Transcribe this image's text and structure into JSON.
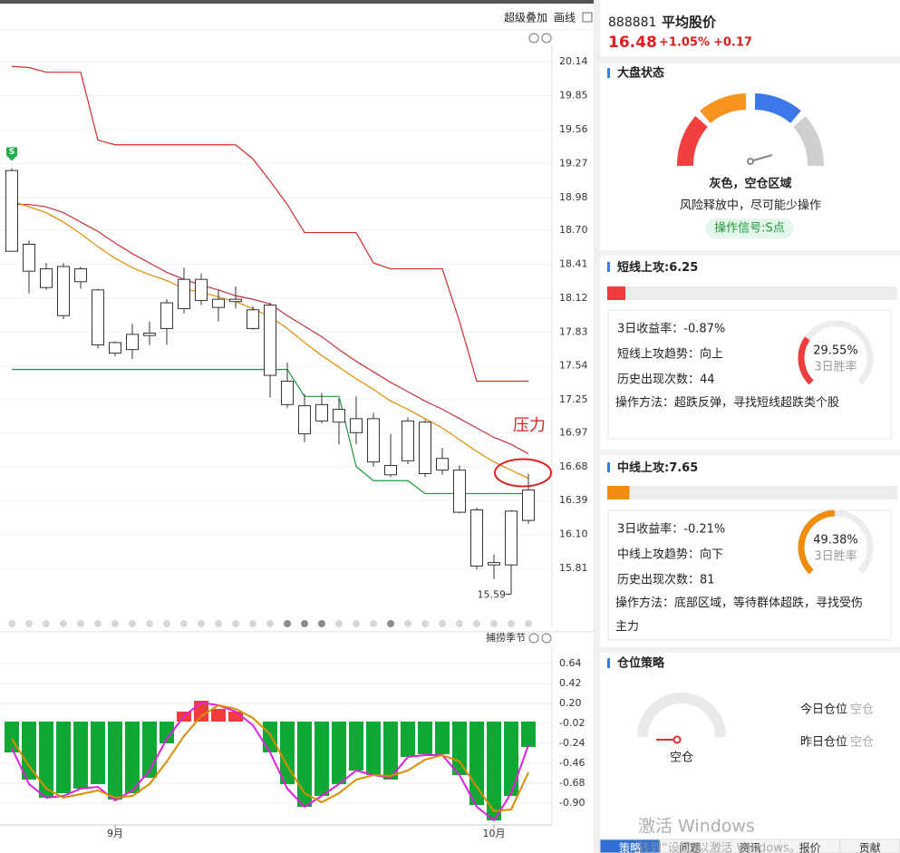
{
  "toolbar": {
    "overlay": "超级叠加",
    "draw": "画线"
  },
  "chart_data": [
    {
      "type": "candlestick",
      "open": [
        18.52,
        18.58,
        18.37,
        18.39,
        18.26,
        18.19,
        17.74,
        17.68,
        17.8,
        17.86,
        18.03,
        18.28,
        18.11,
        18.09,
        18.02,
        18.06,
        17.41,
        17.2,
        17.07,
        17.17,
        16.97,
        17.09,
        16.61,
        16.73,
        17.06,
        16.75,
        16.65,
        16.31,
        15.86,
        15.84,
        16.22
      ],
      "high": [
        19.23,
        18.61,
        18.42,
        18.42,
        18.39,
        18.2,
        17.75,
        17.9,
        17.92,
        18.11,
        18.38,
        18.33,
        18.19,
        18.22,
        18.05,
        18.08,
        17.57,
        17.3,
        17.31,
        17.26,
        17.28,
        17.14,
        16.96,
        17.1,
        17.08,
        16.84,
        16.69,
        16.33,
        15.93,
        16.31,
        16.62
      ],
      "low": [
        18.52,
        18.16,
        18.19,
        17.94,
        18.2,
        17.69,
        17.62,
        17.6,
        17.72,
        17.72,
        17.99,
        18.06,
        17.92,
        18.03,
        17.85,
        17.27,
        17.18,
        16.89,
        17.05,
        16.87,
        16.87,
        16.68,
        16.59,
        16.7,
        16.59,
        16.61,
        16.28,
        15.8,
        15.72,
        15.59,
        16.19
      ],
      "close": [
        19.21,
        18.35,
        18.21,
        17.97,
        18.37,
        17.72,
        17.65,
        17.81,
        17.82,
        18.08,
        18.28,
        18.1,
        18.04,
        18.11,
        17.86,
        17.46,
        17.21,
        16.96,
        17.21,
        17.06,
        17.09,
        16.72,
        16.69,
        17.07,
        16.62,
        16.65,
        16.29,
        15.83,
        15.84,
        16.3,
        16.48
      ],
      "candle_color": "#333333",
      "series": [
        {
          "color": "#d42b2b",
          "values": [
            20.1,
            20.09,
            20.05,
            20.05,
            20.05,
            19.47,
            19.43,
            19.43,
            19.43,
            19.43,
            19.43,
            19.43,
            19.43,
            19.43,
            19.31,
            19.12,
            18.92,
            18.68,
            18.68,
            18.68,
            18.68,
            18.42,
            18.37,
            18.37,
            18.37,
            18.37,
            17.92,
            17.41,
            17.41,
            17.41,
            17.41
          ]
        },
        {
          "color": "#c8323a",
          "values": [
            18.92,
            18.92,
            18.9,
            18.85,
            18.77,
            18.69,
            18.59,
            18.5,
            18.42,
            18.34,
            18.28,
            18.23,
            18.19,
            18.14,
            18.11,
            18.07,
            17.97,
            17.88,
            17.79,
            17.68,
            17.58,
            17.49,
            17.4,
            17.32,
            17.24,
            17.17,
            17.09,
            17.01,
            16.93,
            16.87,
            16.79
          ]
        },
        {
          "color": "#e08a00",
          "values": [
            18.95,
            18.9,
            18.85,
            18.77,
            18.67,
            18.56,
            18.46,
            18.38,
            18.32,
            18.27,
            18.2,
            18.17,
            18.13,
            18.09,
            18.03,
            17.96,
            17.86,
            17.74,
            17.63,
            17.53,
            17.43,
            17.34,
            17.24,
            17.17,
            17.09,
            17.01,
            16.91,
            16.81,
            16.72,
            16.65,
            16.58
          ]
        },
        {
          "color": "#1a9a3a",
          "values": [
            17.51,
            17.51,
            17.51,
            17.51,
            17.51,
            17.51,
            17.51,
            17.51,
            17.51,
            17.51,
            17.51,
            17.51,
            17.51,
            17.51,
            17.51,
            17.51,
            17.51,
            17.28,
            17.28,
            17.28,
            16.68,
            16.56,
            16.56,
            16.56,
            16.45,
            16.45,
            16.45,
            16.45,
            16.45,
            16.45,
            16.45
          ]
        }
      ],
      "signal": "S",
      "signal_color": "#1fb04a",
      "annotation": "压力",
      "annotation_color": "#e02020",
      "ylim": [
        15.4,
        20.28
      ],
      "yticks": [
        20.14,
        19.85,
        19.56,
        19.27,
        18.98,
        {
          "value": 18.7,
          "label": "18.70"
        },
        18.41,
        18.12,
        17.83,
        17.54,
        17.25,
        16.97,
        16.68,
        16.39,
        {
          "value": 16.1,
          "label": "16.10"
        },
        15.81
      ],
      "grid": true
    },
    {
      "type": "bar",
      "title": "捕捞季节",
      "categories": [
        null,
        null,
        null,
        null,
        null,
        null,
        "9月",
        null,
        null,
        null,
        null,
        null,
        null,
        null,
        null,
        null,
        null,
        null,
        null,
        null,
        null,
        null,
        null,
        null,
        null,
        null,
        null,
        null,
        "10月",
        null,
        null
      ],
      "values": [
        -0.34,
        -0.64,
        -0.84,
        -0.79,
        -0.74,
        -0.69,
        -0.86,
        -0.79,
        -0.62,
        -0.24,
        0.11,
        0.23,
        0.14,
        0.11,
        null,
        -0.34,
        -0.69,
        -0.94,
        -0.82,
        -0.69,
        -0.54,
        -0.59,
        -0.64,
        -0.39,
        -0.36,
        -0.36,
        -0.59,
        -0.92,
        -1.09,
        -0.82,
        -0.28
      ],
      "up_color": "#f03c3c",
      "down_color": "#0fa834",
      "series": [
        {
          "color": "#e020e0",
          "values": [
            -0.29,
            -0.69,
            -0.84,
            -0.82,
            -0.74,
            -0.72,
            -0.87,
            -0.76,
            -0.54,
            -0.19,
            0.06,
            0.21,
            0.18,
            0.11,
            -0.04,
            -0.34,
            -0.74,
            -0.94,
            -0.82,
            -0.69,
            -0.54,
            -0.59,
            -0.62,
            -0.39,
            -0.37,
            -0.37,
            -0.59,
            -0.94,
            -1.09,
            -0.79,
            -0.26
          ]
        },
        {
          "color": "#d98c00",
          "values": [
            -0.19,
            -0.49,
            -0.74,
            -0.84,
            -0.8,
            -0.76,
            -0.84,
            -0.82,
            -0.69,
            -0.44,
            -0.16,
            0.06,
            0.18,
            0.14,
            0.04,
            -0.14,
            -0.49,
            -0.79,
            -0.89,
            -0.79,
            -0.64,
            -0.59,
            -0.6,
            -0.54,
            -0.42,
            -0.37,
            -0.44,
            -0.72,
            -0.99,
            -0.97,
            -0.56
          ]
        }
      ],
      "ylim": [
        -1.14,
        0.91
      ],
      "yticks": [
        0.64,
        0.42,
        {
          "value": 0.2,
          "label": "0.20"
        },
        -0.02,
        -0.24,
        -0.46,
        -0.68,
        {
          "value": -0.9,
          "label": "-0.90"
        }
      ],
      "grid": true
    }
  ],
  "panel": {
    "code": "888881",
    "name": "平均股价",
    "price": 16.48,
    "change_pct": "+1.05%",
    "change": "+0.17",
    "market": {
      "title": "大盘状态",
      "status": "灰色，空仓区域",
      "desc": "风险释放中，尽可能少操作",
      "signal": "操作信号:S点"
    },
    "short": {
      "title": "短线上攻:",
      "score": 6.25,
      "color": "#f03c3c",
      "rows": [
        "3日收益率：-0.87%",
        "短线上攻趋势：向上",
        "历史出现次数：44",
        "操作方法：超跌反弹，寻找短线超跌类个股"
      ],
      "win": {
        "value": 29.55,
        "label": "29.55%"
      },
      "win_title": "3日胜率"
    },
    "mid": {
      "title": "中线上攻:",
      "score": 7.65,
      "color": "#f28c0f",
      "rows": [
        "3日收益率：-0.21%",
        "中线上攻趋势：向下",
        "历史出现次数：81",
        "操作方法：底部区域，等待群体超跌，寻找受伤主力"
      ],
      "win": {
        "value": 49.38,
        "label": "49.38%"
      },
      "win_title": "3日胜率"
    },
    "position": {
      "title": "仓位策略",
      "state": "空仓",
      "today": "今日仓位",
      "today_value": "空仓",
      "yesterday": "昨日仓位",
      "yesterday_value": "空仓"
    },
    "tabs": [
      "策略",
      "问题",
      "资讯",
      "报价",
      "贡献"
    ],
    "watermark": [
      "激活 Windows",
      "转到“设置”以激活 Windows。"
    ]
  }
}
